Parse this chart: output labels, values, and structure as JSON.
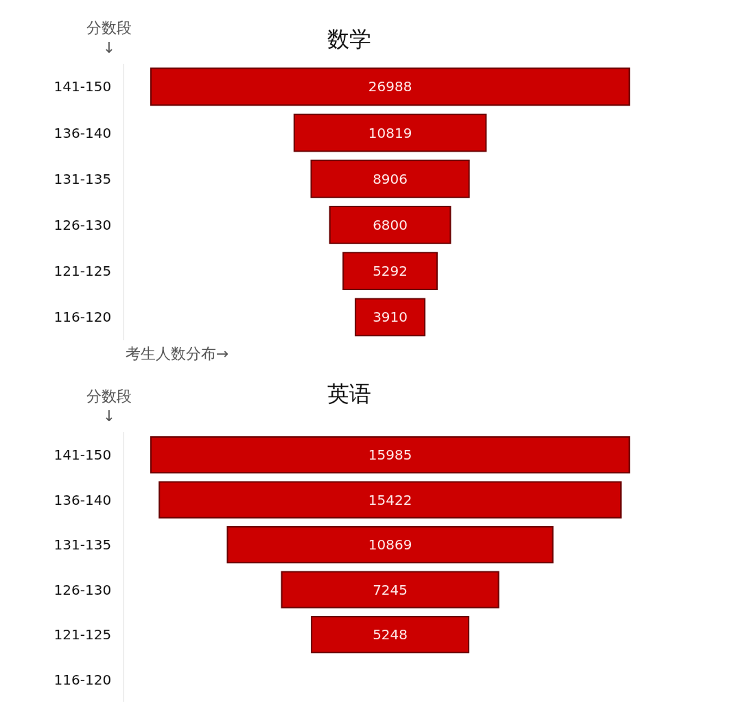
{
  "chart_data": [
    {
      "type": "other",
      "title": "数学",
      "ylabel": "分数段\n↓",
      "xlabel": "考生人数分布→",
      "categories": [
        "141-150",
        "136-140",
        "131-135",
        "126-130",
        "121-125",
        "116-120"
      ],
      "values": [
        26988,
        10819,
        8906,
        6800,
        5292,
        3910
      ],
      "color": "#cc0000",
      "data_labels": true
    },
    {
      "type": "other",
      "title": "英语",
      "ylabel": "分数段\n↓",
      "categories": [
        "141-150",
        "136-140",
        "131-135",
        "126-130",
        "121-125",
        "116-120"
      ],
      "values": [
        15985,
        15422,
        10869,
        7245,
        5248,
        null
      ],
      "color": "#cc0000",
      "data_labels": true
    }
  ]
}
